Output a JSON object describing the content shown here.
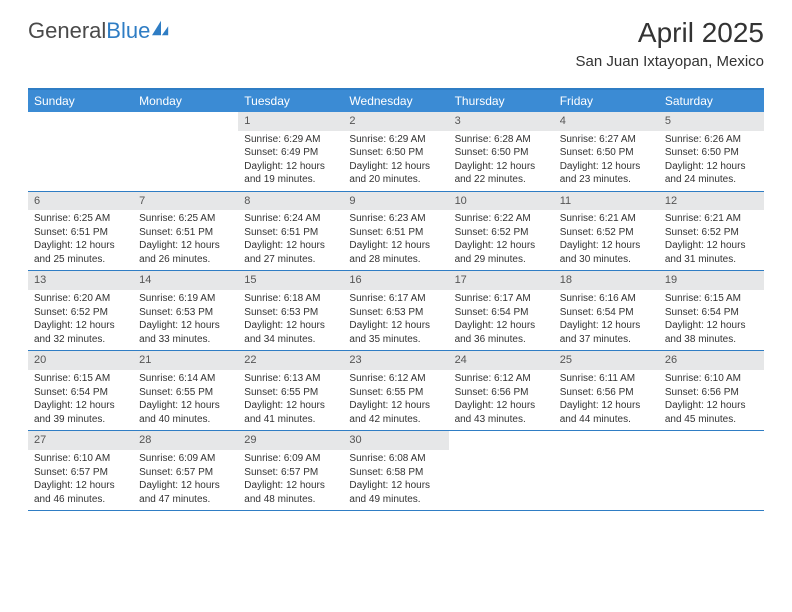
{
  "brand": {
    "name1": "General",
    "name2": "Blue"
  },
  "title": "April 2025",
  "location": "San Juan Ixtayopan, Mexico",
  "colors": {
    "headerBar": "#3b8bd4",
    "borderBlue": "#2f7dc4",
    "dayNumBg": "#e6e7e8",
    "text": "#333333"
  },
  "dayNames": [
    "Sunday",
    "Monday",
    "Tuesday",
    "Wednesday",
    "Thursday",
    "Friday",
    "Saturday"
  ],
  "weeks": [
    [
      null,
      null,
      {
        "n": "1",
        "sr": "6:29 AM",
        "ss": "6:49 PM",
        "dl": "12 hours and 19 minutes."
      },
      {
        "n": "2",
        "sr": "6:29 AM",
        "ss": "6:50 PM",
        "dl": "12 hours and 20 minutes."
      },
      {
        "n": "3",
        "sr": "6:28 AM",
        "ss": "6:50 PM",
        "dl": "12 hours and 22 minutes."
      },
      {
        "n": "4",
        "sr": "6:27 AM",
        "ss": "6:50 PM",
        "dl": "12 hours and 23 minutes."
      },
      {
        "n": "5",
        "sr": "6:26 AM",
        "ss": "6:50 PM",
        "dl": "12 hours and 24 minutes."
      }
    ],
    [
      {
        "n": "6",
        "sr": "6:25 AM",
        "ss": "6:51 PM",
        "dl": "12 hours and 25 minutes."
      },
      {
        "n": "7",
        "sr": "6:25 AM",
        "ss": "6:51 PM",
        "dl": "12 hours and 26 minutes."
      },
      {
        "n": "8",
        "sr": "6:24 AM",
        "ss": "6:51 PM",
        "dl": "12 hours and 27 minutes."
      },
      {
        "n": "9",
        "sr": "6:23 AM",
        "ss": "6:51 PM",
        "dl": "12 hours and 28 minutes."
      },
      {
        "n": "10",
        "sr": "6:22 AM",
        "ss": "6:52 PM",
        "dl": "12 hours and 29 minutes."
      },
      {
        "n": "11",
        "sr": "6:21 AM",
        "ss": "6:52 PM",
        "dl": "12 hours and 30 minutes."
      },
      {
        "n": "12",
        "sr": "6:21 AM",
        "ss": "6:52 PM",
        "dl": "12 hours and 31 minutes."
      }
    ],
    [
      {
        "n": "13",
        "sr": "6:20 AM",
        "ss": "6:52 PM",
        "dl": "12 hours and 32 minutes."
      },
      {
        "n": "14",
        "sr": "6:19 AM",
        "ss": "6:53 PM",
        "dl": "12 hours and 33 minutes."
      },
      {
        "n": "15",
        "sr": "6:18 AM",
        "ss": "6:53 PM",
        "dl": "12 hours and 34 minutes."
      },
      {
        "n": "16",
        "sr": "6:17 AM",
        "ss": "6:53 PM",
        "dl": "12 hours and 35 minutes."
      },
      {
        "n": "17",
        "sr": "6:17 AM",
        "ss": "6:54 PM",
        "dl": "12 hours and 36 minutes."
      },
      {
        "n": "18",
        "sr": "6:16 AM",
        "ss": "6:54 PM",
        "dl": "12 hours and 37 minutes."
      },
      {
        "n": "19",
        "sr": "6:15 AM",
        "ss": "6:54 PM",
        "dl": "12 hours and 38 minutes."
      }
    ],
    [
      {
        "n": "20",
        "sr": "6:15 AM",
        "ss": "6:54 PM",
        "dl": "12 hours and 39 minutes."
      },
      {
        "n": "21",
        "sr": "6:14 AM",
        "ss": "6:55 PM",
        "dl": "12 hours and 40 minutes."
      },
      {
        "n": "22",
        "sr": "6:13 AM",
        "ss": "6:55 PM",
        "dl": "12 hours and 41 minutes."
      },
      {
        "n": "23",
        "sr": "6:12 AM",
        "ss": "6:55 PM",
        "dl": "12 hours and 42 minutes."
      },
      {
        "n": "24",
        "sr": "6:12 AM",
        "ss": "6:56 PM",
        "dl": "12 hours and 43 minutes."
      },
      {
        "n": "25",
        "sr": "6:11 AM",
        "ss": "6:56 PM",
        "dl": "12 hours and 44 minutes."
      },
      {
        "n": "26",
        "sr": "6:10 AM",
        "ss": "6:56 PM",
        "dl": "12 hours and 45 minutes."
      }
    ],
    [
      {
        "n": "27",
        "sr": "6:10 AM",
        "ss": "6:57 PM",
        "dl": "12 hours and 46 minutes."
      },
      {
        "n": "28",
        "sr": "6:09 AM",
        "ss": "6:57 PM",
        "dl": "12 hours and 47 minutes."
      },
      {
        "n": "29",
        "sr": "6:09 AM",
        "ss": "6:57 PM",
        "dl": "12 hours and 48 minutes."
      },
      {
        "n": "30",
        "sr": "6:08 AM",
        "ss": "6:58 PM",
        "dl": "12 hours and 49 minutes."
      },
      null,
      null,
      null
    ]
  ],
  "labels": {
    "sunrise": "Sunrise: ",
    "sunset": "Sunset: ",
    "daylight": "Daylight: "
  }
}
